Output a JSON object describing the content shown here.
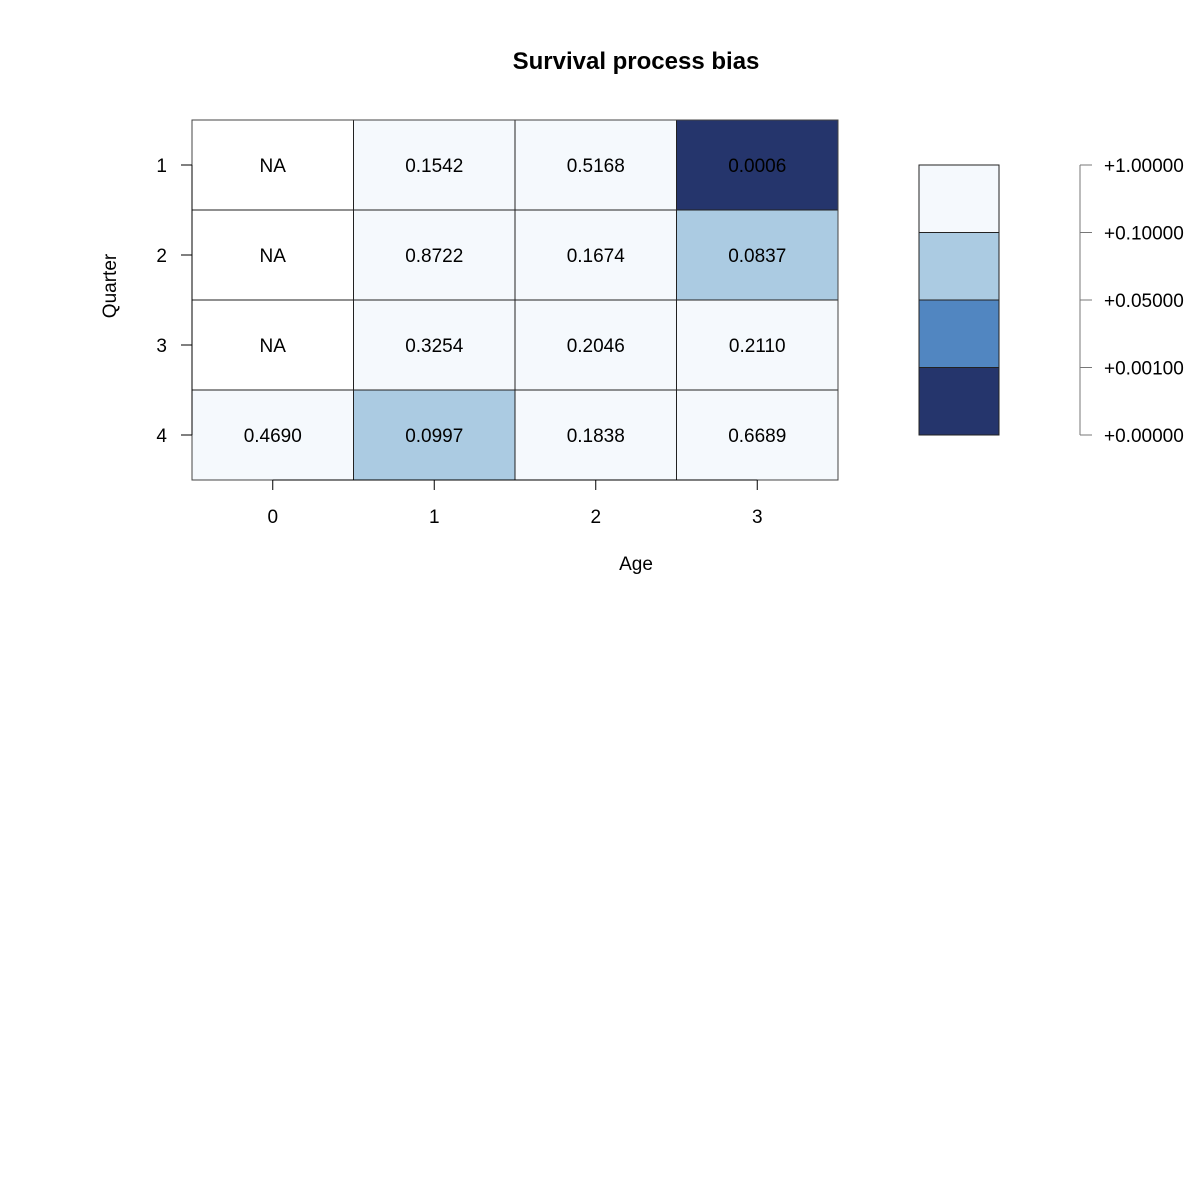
{
  "chart_data": {
    "type": "heatmap",
    "title": "Survival process bias",
    "xlabel": "Age",
    "ylabel": "Quarter",
    "x": [
      "0",
      "1",
      "2",
      "3"
    ],
    "y": [
      "1",
      "2",
      "3",
      "4"
    ],
    "cells": [
      [
        "NA",
        "0.1542",
        "0.5168",
        "0.0006"
      ],
      [
        "NA",
        "0.8722",
        "0.1674",
        "0.0837"
      ],
      [
        "NA",
        "0.3254",
        "0.2046",
        "0.2110"
      ],
      [
        "0.4690",
        "0.0997",
        "0.1838",
        "0.6689"
      ]
    ],
    "legend": {
      "placement": "right",
      "breaks": [
        "+1.00000",
        "+0.10000",
        "+0.05000",
        "+0.00100",
        "+0.00000"
      ],
      "colors": [
        "#f5f9fd",
        "#abcbe2",
        "#5186c1",
        "#25356c"
      ]
    },
    "na_color": "#ffffff",
    "grid": true
  }
}
